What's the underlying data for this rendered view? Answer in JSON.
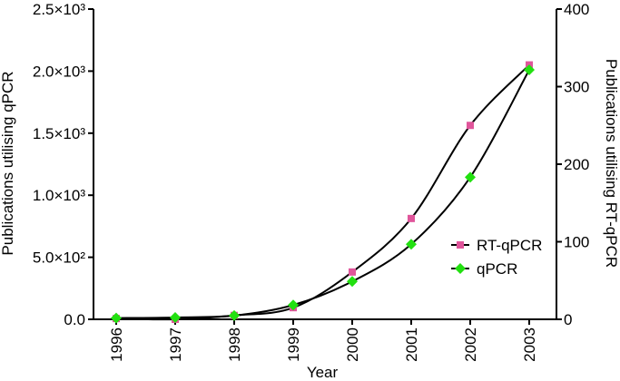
{
  "chart_data": {
    "type": "line",
    "xlabel": "Year",
    "ylabel_left": "Publications utilising qPCR",
    "ylabel_right": "Publications utilising RT-qPCR",
    "categories": [
      "1996",
      "1997",
      "1998",
      "1999",
      "2000",
      "2001",
      "2002",
      "2003"
    ],
    "y_left": {
      "lim": [
        0,
        2500
      ],
      "ticks": [
        0,
        500,
        1000,
        1500,
        2000,
        2500
      ],
      "tick_labels": [
        "0.0",
        "5.0×10²",
        "1.0×10³",
        "1.5×10³",
        "2.0×10³",
        "2.5×10³"
      ]
    },
    "y_right": {
      "lim": [
        0,
        400
      ],
      "ticks": [
        0,
        100,
        200,
        300,
        400
      ],
      "tick_labels": [
        "0",
        "100",
        "200",
        "300",
        "400"
      ]
    },
    "series": [
      {
        "name": "RT-qPCR",
        "axis": "right",
        "color": "#e0559b",
        "marker": "square",
        "values": [
          1,
          0,
          5,
          15,
          61,
          130,
          250,
          328
        ]
      },
      {
        "name": "qPCR",
        "axis": "left",
        "color": "#22e010",
        "marker": "diamond",
        "values": [
          10,
          15,
          30,
          115,
          305,
          605,
          1145,
          2010
        ]
      }
    ],
    "legend_position": "center-right",
    "grid": false
  }
}
